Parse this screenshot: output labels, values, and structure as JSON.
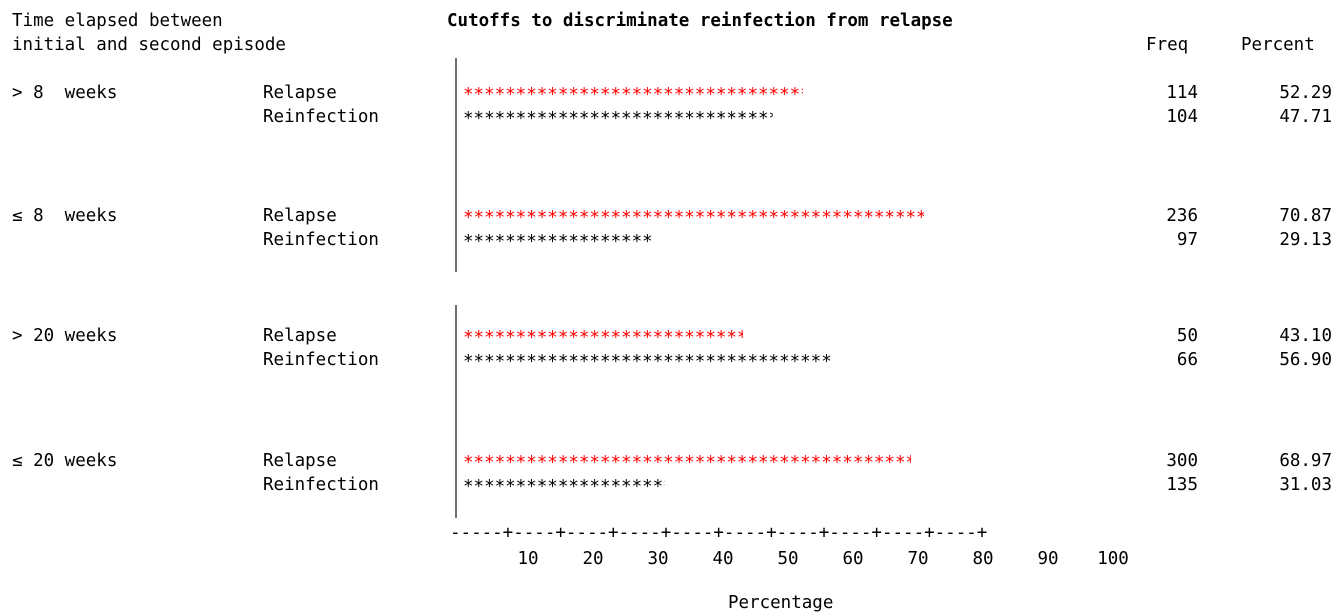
{
  "header": {
    "left_line1": "Time elapsed between",
    "left_line2": "initial and second episode",
    "title": "Cutoffs to discriminate reinfection from relapse",
    "freq_label": "Freq",
    "percent_label": "Percent"
  },
  "colors": {
    "relapse": "#ff0000",
    "reinfection": "#000000"
  },
  "chart_data": {
    "type": "bar",
    "orientation": "horizontal",
    "title": "Cutoffs to discriminate reinfection from relapse",
    "xlabel": "Percentage",
    "xlim": [
      0,
      100
    ],
    "tick_labels": [
      "10",
      "20",
      "30",
      "40",
      "50",
      "60",
      "70",
      "80",
      "90",
      "100"
    ],
    "axis_rule": "-----+----+----+----+----+----+----+----+----+----+",
    "groups": [
      {
        "label": "> 8  weeks",
        "bars": [
          {
            "name": "Relapse",
            "freq": "114",
            "percent": "52.29",
            "value": 52.29
          },
          {
            "name": "Reinfection",
            "freq": "104",
            "percent": "47.71",
            "value": 47.71
          }
        ]
      },
      {
        "label": "≤ 8  weeks",
        "bars": [
          {
            "name": "Relapse",
            "freq": "236",
            "percent": "70.87",
            "value": 70.87
          },
          {
            "name": "Reinfection",
            "freq": "97",
            "percent": "29.13",
            "value": 29.13
          }
        ]
      },
      {
        "label": "> 20 weeks",
        "bars": [
          {
            "name": "Relapse",
            "freq": "50",
            "percent": "43.10",
            "value": 43.1
          },
          {
            "name": "Reinfection",
            "freq": "66",
            "percent": "56.90",
            "value": 56.9
          }
        ]
      },
      {
        "label": "≤ 20 weeks",
        "bars": [
          {
            "name": "Relapse",
            "freq": "300",
            "percent": "68.97",
            "value": 68.97
          },
          {
            "name": "Reinfection",
            "freq": "135",
            "percent": "31.03",
            "value": 31.03
          }
        ]
      }
    ]
  }
}
